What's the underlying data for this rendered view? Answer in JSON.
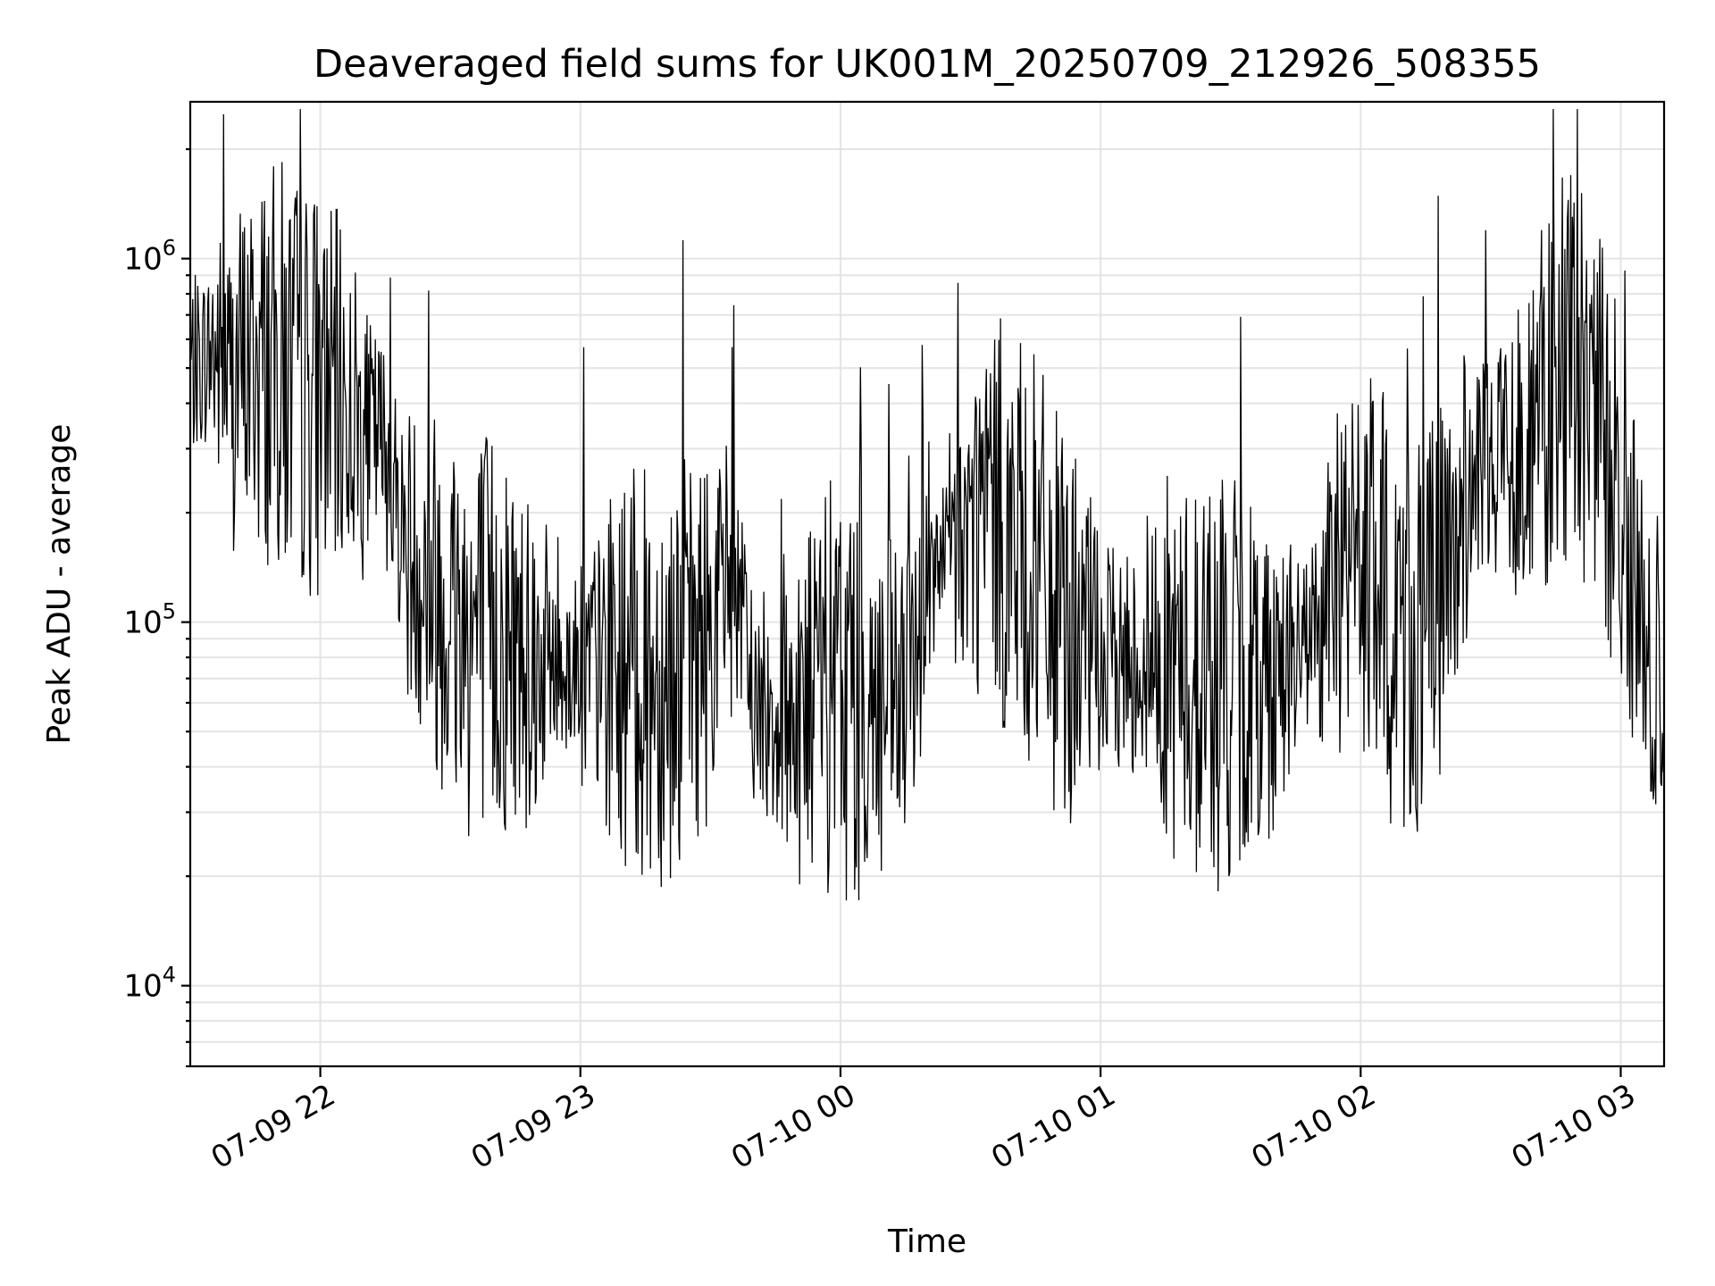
{
  "chart_data": {
    "type": "line",
    "title": "Deaveraged field sums for UK001M_20250709_212926_508355",
    "xlabel": "Time",
    "ylabel": "Peak ADU - average",
    "yscale": "log",
    "grid": true,
    "x_range": [
      "2025-07-09 21:30",
      "2025-07-10 03:10"
    ],
    "ylim": [
      6000,
      2700000
    ],
    "x_ticks": [
      {
        "value": "2025-07-09 22:00",
        "label": "07-09 22"
      },
      {
        "value": "2025-07-09 23:00",
        "label": "07-09 23"
      },
      {
        "value": "2025-07-10 00:00",
        "label": "07-10 00"
      },
      {
        "value": "2025-07-10 01:00",
        "label": "07-10 01"
      },
      {
        "value": "2025-07-10 02:00",
        "label": "07-10 02"
      },
      {
        "value": "2025-07-10 03:00",
        "label": "07-10 03"
      }
    ],
    "y_ticks": [
      {
        "value": 10000,
        "base": "10",
        "exp": "4"
      },
      {
        "value": 100000,
        "base": "10",
        "exp": "5"
      },
      {
        "value": 1000000,
        "base": "10",
        "exp": "6"
      }
    ],
    "series_color": "#000000",
    "series": [
      {
        "x": [
          "2025-07-09 21:30",
          "2025-07-09 21:35",
          "2025-07-09 21:40",
          "2025-07-09 21:45",
          "2025-07-09 21:50",
          "2025-07-09 21:55",
          "2025-07-09 22:00",
          "2025-07-09 22:05",
          "2025-07-09 22:10",
          "2025-07-09 22:15",
          "2025-07-09 22:20",
          "2025-07-09 22:25",
          "2025-07-09 22:30",
          "2025-07-09 22:35",
          "2025-07-09 22:40",
          "2025-07-09 22:45",
          "2025-07-09 22:50",
          "2025-07-09 22:55",
          "2025-07-09 23:00",
          "2025-07-09 23:05",
          "2025-07-09 23:10",
          "2025-07-09 23:15",
          "2025-07-09 23:20",
          "2025-07-09 23:25",
          "2025-07-09 23:30",
          "2025-07-09 23:35",
          "2025-07-09 23:40",
          "2025-07-09 23:45",
          "2025-07-09 23:50",
          "2025-07-09 23:55",
          "2025-07-10 00:00",
          "2025-07-10 00:05",
          "2025-07-10 00:10",
          "2025-07-10 00:15",
          "2025-07-10 00:20",
          "2025-07-10 00:25",
          "2025-07-10 00:30",
          "2025-07-10 00:35",
          "2025-07-10 00:40",
          "2025-07-10 00:45",
          "2025-07-10 00:50",
          "2025-07-10 00:55",
          "2025-07-10 01:00",
          "2025-07-10 01:05",
          "2025-07-10 01:10",
          "2025-07-10 01:15",
          "2025-07-10 01:20",
          "2025-07-10 01:25",
          "2025-07-10 01:30",
          "2025-07-10 01:35",
          "2025-07-10 01:40",
          "2025-07-10 01:45",
          "2025-07-10 01:50",
          "2025-07-10 01:55",
          "2025-07-10 02:00",
          "2025-07-10 02:05",
          "2025-07-10 02:10",
          "2025-07-10 02:15",
          "2025-07-10 02:20",
          "2025-07-10 02:25",
          "2025-07-10 02:30",
          "2025-07-10 02:35",
          "2025-07-10 02:40",
          "2025-07-10 02:45",
          "2025-07-10 02:50",
          "2025-07-10 02:55",
          "2025-07-10 03:00",
          "2025-07-10 03:05",
          "2025-07-10 03:10"
        ],
        "y": [
          500000,
          550000,
          480000,
          520000,
          500000,
          460000,
          430000,
          400000,
          350000,
          300000,
          160000,
          130000,
          110000,
          95000,
          90000,
          85000,
          80000,
          78000,
          76000,
          74000,
          73000,
          72000,
          75000,
          80000,
          95000,
          140000,
          60000,
          58000,
          60000,
          62000,
          65000,
          66000,
          55000,
          60000,
          120000,
          150000,
          180000,
          210000,
          160000,
          140000,
          100000,
          90000,
          80000,
          78000,
          80000,
          76000,
          72000,
          70000,
          68000,
          70000,
          75000,
          80000,
          100000,
          130000,
          150000,
          110000,
          95000,
          98000,
          140000,
          230000,
          280000,
          300000,
          350000,
          420000,
          480000,
          380000,
          200000,
          90000,
          50000
        ]
      }
    ]
  }
}
